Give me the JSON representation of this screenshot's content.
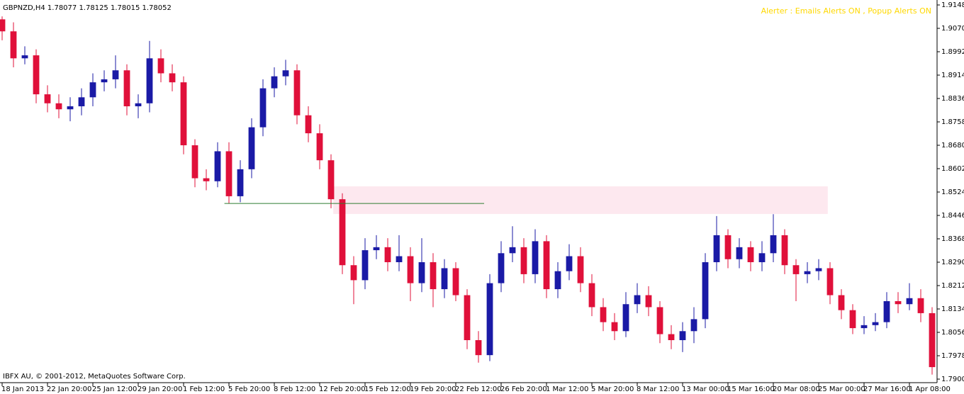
{
  "chart_data": {
    "type": "candlestick",
    "title": "GBPNZD,H4  1.78077 1.78125 1.78015 1.78052",
    "alert_text": "Alerter : Emails Alerts ON , Popup Alerts ON",
    "copyright": "IBFX AU, © 2001-2012, MetaQuotes Software Corp.",
    "up_color": "#1a1aa6",
    "down_color": "#e0103a",
    "x": [
      0,
      1,
      2,
      3,
      4,
      5,
      6,
      7,
      8,
      9,
      10,
      11,
      12,
      13,
      14,
      15,
      16,
      17,
      18,
      19,
      20,
      21,
      22,
      23,
      24,
      25,
      26,
      27,
      28,
      29,
      30,
      31,
      32,
      33,
      34,
      35,
      36,
      37,
      38,
      39,
      40,
      41,
      42,
      43,
      44,
      45,
      46,
      47,
      48,
      49,
      50,
      51,
      52,
      53,
      54,
      55,
      56,
      57,
      58,
      59,
      60,
      61,
      62,
      63,
      64,
      65,
      66,
      67,
      68,
      69,
      70,
      71,
      72,
      73,
      74,
      75,
      76,
      77,
      78,
      79,
      80,
      81,
      82
    ],
    "open": [
      1.91,
      1.906,
      1.897,
      1.898,
      1.885,
      1.882,
      1.88,
      1.881,
      1.884,
      1.889,
      1.89,
      1.893,
      1.881,
      1.882,
      1.897,
      1.892,
      1.889,
      1.868,
      1.857,
      1.856,
      1.866,
      1.851,
      1.86,
      1.874,
      1.887,
      1.891,
      1.893,
      1.878,
      1.872,
      1.863,
      1.85,
      1.828,
      1.823,
      1.833,
      1.834,
      1.829,
      1.831,
      1.822,
      1.829,
      1.82,
      1.827,
      1.818,
      1.803,
      1.798,
      1.822,
      1.832,
      1.834,
      1.825,
      1.836,
      1.82,
      1.826,
      1.831,
      1.822,
      1.814,
      1.809,
      1.806,
      1.815,
      1.818,
      1.814,
      1.805,
      1.803,
      1.806,
      1.81,
      1.829,
      1.838,
      1.83,
      1.834,
      1.829,
      1.832,
      1.838,
      1.828,
      1.825,
      1.826,
      1.827,
      1.818,
      1.813,
      1.807,
      1.808,
      1.809,
      1.816,
      1.815,
      1.817,
      1.812
    ],
    "high": [
      1.911,
      1.909,
      1.901,
      1.9,
      1.888,
      1.885,
      1.884,
      1.887,
      1.892,
      1.893,
      1.898,
      1.895,
      1.885,
      1.9028,
      1.9,
      1.895,
      1.891,
      1.87,
      1.86,
      1.869,
      1.869,
      1.863,
      1.877,
      1.89,
      1.894,
      1.8965,
      1.895,
      1.881,
      1.875,
      1.865,
      1.852,
      1.831,
      1.837,
      1.838,
      1.837,
      1.838,
      1.834,
      1.837,
      1.832,
      1.83,
      1.829,
      1.82,
      1.806,
      1.825,
      1.836,
      1.841,
      1.837,
      1.84,
      1.838,
      1.829,
      1.835,
      1.834,
      1.825,
      1.817,
      1.812,
      1.819,
      1.822,
      1.821,
      1.816,
      1.808,
      1.809,
      1.814,
      1.832,
      1.8444,
      1.84,
      1.837,
      1.836,
      1.836,
      1.845,
      1.84,
      1.83,
      1.829,
      1.83,
      1.829,
      1.82,
      1.815,
      1.811,
      1.812,
      1.819,
      1.819,
      1.822,
      1.82,
      1.814
    ],
    "low": [
      1.903,
      1.894,
      1.895,
      1.882,
      1.879,
      1.877,
      1.876,
      1.878,
      1.881,
      1.886,
      1.887,
      1.878,
      1.877,
      1.879,
      1.889,
      1.886,
      1.865,
      1.854,
      1.853,
      1.854,
      1.8485,
      1.849,
      1.857,
      1.871,
      1.884,
      1.888,
      1.875,
      1.869,
      1.86,
      1.847,
      1.825,
      1.815,
      1.82,
      1.83,
      1.826,
      1.826,
      1.816,
      1.819,
      1.814,
      1.817,
      1.816,
      1.8,
      1.7955,
      1.796,
      1.819,
      1.829,
      1.822,
      1.822,
      1.817,
      1.817,
      1.823,
      1.819,
      1.811,
      1.806,
      1.803,
      1.804,
      1.812,
      1.811,
      1.802,
      1.8,
      1.799,
      1.802,
      1.807,
      1.826,
      1.827,
      1.827,
      1.826,
      1.826,
      1.829,
      1.825,
      1.816,
      1.822,
      1.823,
      1.815,
      1.81,
      1.805,
      1.805,
      1.806,
      1.807,
      1.812,
      1.813,
      1.809,
      1.7915
    ],
    "close": [
      1.906,
      1.897,
      1.898,
      1.885,
      1.882,
      1.88,
      1.881,
      1.884,
      1.889,
      1.89,
      1.893,
      1.881,
      1.882,
      1.897,
      1.892,
      1.889,
      1.868,
      1.857,
      1.856,
      1.866,
      1.851,
      1.86,
      1.874,
      1.887,
      1.891,
      1.893,
      1.878,
      1.872,
      1.863,
      1.85,
      1.828,
      1.823,
      1.833,
      1.834,
      1.829,
      1.831,
      1.822,
      1.829,
      1.82,
      1.827,
      1.818,
      1.803,
      1.798,
      1.822,
      1.832,
      1.834,
      1.825,
      1.836,
      1.82,
      1.826,
      1.831,
      1.822,
      1.814,
      1.809,
      1.806,
      1.815,
      1.818,
      1.814,
      1.805,
      1.803,
      1.806,
      1.81,
      1.829,
      1.838,
      1.83,
      1.834,
      1.829,
      1.832,
      1.838,
      1.828,
      1.825,
      1.826,
      1.827,
      1.818,
      1.813,
      1.807,
      1.808,
      1.809,
      1.816,
      1.815,
      1.817,
      1.812,
      1.794
    ],
    "xlim": [
      0,
      82.5
    ],
    "ylim": [
      1.79,
      1.9148
    ],
    "xticks": [
      {
        "value": 0,
        "label": "18 Jan 2013"
      },
      {
        "value": 4,
        "label": "22 Jan 20:00"
      },
      {
        "value": 8,
        "label": "25 Jan 12:00"
      },
      {
        "value": 12,
        "label": "29 Jan 20:00"
      },
      {
        "value": 16,
        "label": "1 Feb 12:00"
      },
      {
        "value": 20,
        "label": "5 Feb 20:00"
      },
      {
        "value": 24,
        "label": "8 Feb 12:00"
      },
      {
        "value": 28,
        "label": "12 Feb 20:00"
      },
      {
        "value": 32,
        "label": "15 Feb 12:00"
      },
      {
        "value": 36,
        "label": "19 Feb 20:00"
      },
      {
        "value": 40,
        "label": "22 Feb 12:00"
      },
      {
        "value": 44,
        "label": "26 Feb 20:00"
      },
      {
        "value": 48,
        "label": "1 Mar 12:00"
      },
      {
        "value": 52,
        "label": "5 Mar 20:00"
      },
      {
        "value": 56,
        "label": "8 Mar 12:00"
      },
      {
        "value": 60,
        "label": "13 Mar 00:00"
      },
      {
        "value": 64,
        "label": "15 Mar 16:00"
      },
      {
        "value": 68,
        "label": "20 Mar 08:00"
      },
      {
        "value": 72,
        "label": "25 Mar 00:00"
      },
      {
        "value": 76,
        "label": "27 Mar 16:00"
      },
      {
        "value": 80,
        "label": "1 Apr 08:00"
      }
    ],
    "yticks": [
      {
        "value": 1.9148,
        "label": "1.91480"
      },
      {
        "value": 1.907,
        "label": "1.90700"
      },
      {
        "value": 1.8992,
        "label": "1.89920"
      },
      {
        "value": 1.8914,
        "label": "1.89140"
      },
      {
        "value": 1.8836,
        "label": "1.88360"
      },
      {
        "value": 1.8758,
        "label": "1.87580"
      },
      {
        "value": 1.868,
        "label": "1.86800"
      },
      {
        "value": 1.8602,
        "label": "1.86020"
      },
      {
        "value": 1.8524,
        "label": "1.85240"
      },
      {
        "value": 1.8446,
        "label": "1.84460"
      },
      {
        "value": 1.8368,
        "label": "1.83680"
      },
      {
        "value": 1.829,
        "label": "1.82900"
      },
      {
        "value": 1.8212,
        "label": "1.82120"
      },
      {
        "value": 1.8134,
        "label": "1.81340"
      },
      {
        "value": 1.8056,
        "label": "1.80560"
      },
      {
        "value": 1.7978,
        "label": "1.79780"
      },
      {
        "value": 1.79,
        "label": "1.79000"
      }
    ],
    "zone": {
      "x": [
        29.2,
        72.8
      ],
      "y": [
        1.8451,
        1.8543
      ],
      "color": "#fde8ef"
    },
    "level_line": {
      "x": [
        19.6,
        42.5
      ],
      "y": 1.8486,
      "color": "#2e7d32"
    }
  }
}
